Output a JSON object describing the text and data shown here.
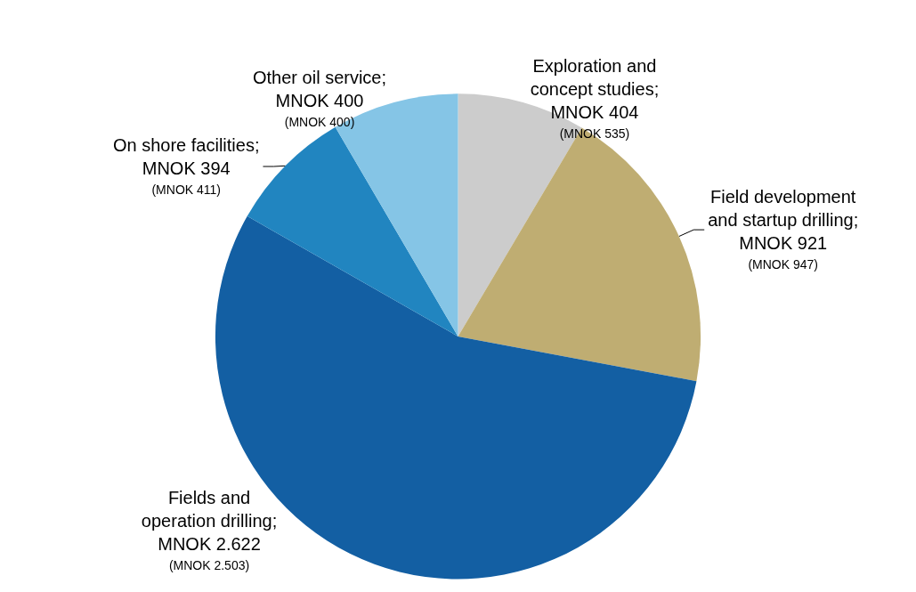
{
  "chart_data": {
    "type": "pie",
    "categories": [
      "Exploration and concept studies",
      "Field development and startup drilling",
      "Fields and operation drilling",
      "On shore facilities",
      "Other oil service"
    ],
    "values": [
      404,
      921,
      2622,
      394,
      400
    ],
    "value_labels": [
      ";\nMNOK 404\n(MNOK 535)",
      ";\nMNOK 921\n(MNOK 947)",
      ";\nMNOK 2.622\n(MNOK 2.503)",
      ";\nMNOK 394\n(MNOK 411)",
      ";\nMNOK 400\n(MNOK 400)"
    ],
    "colors": [
      "#cccccc",
      "#bfad72",
      "#135fa3",
      "#2185c0",
      "#85c5e6"
    ],
    "legend": false
  }
}
